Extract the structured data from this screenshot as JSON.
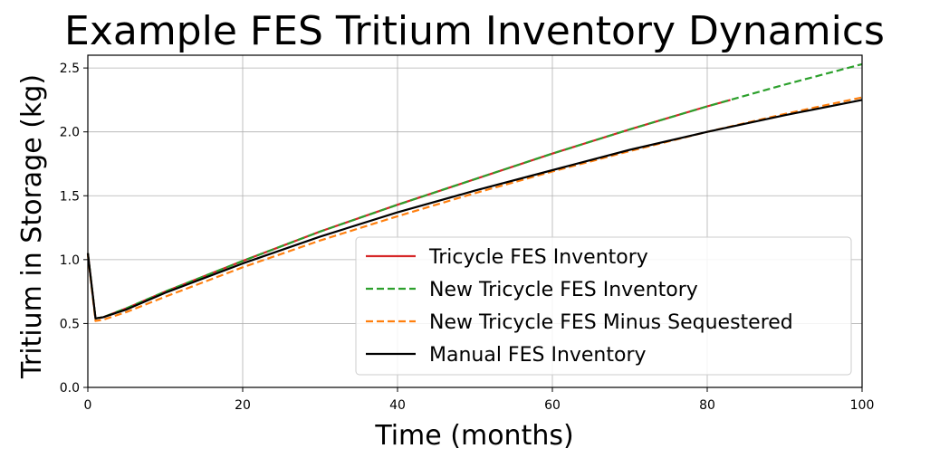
{
  "chart_data": {
    "type": "line",
    "title": "Example FES Tritium Inventory Dynamics",
    "xlabel": "Time (months)",
    "ylabel": "Tritium in Storage (kg)",
    "xlim": [
      0,
      100
    ],
    "ylim": [
      0,
      2.6
    ],
    "xticks": [
      0,
      20,
      40,
      60,
      80,
      100
    ],
    "xtick_labels": [
      "0",
      "20",
      "40",
      "60",
      "80",
      "100"
    ],
    "yticks": [
      0.0,
      0.5,
      1.0,
      1.5,
      2.0,
      2.5
    ],
    "ytick_labels": [
      "0.0",
      "0.5",
      "1.0",
      "1.5",
      "2.0",
      "2.5"
    ],
    "grid": true,
    "legend_position": "lower-right",
    "series": [
      {
        "name": "Tricycle FES Inventory",
        "color": "#d62728",
        "style": "solid",
        "x": [
          0,
          1,
          2,
          5,
          10,
          20,
          30,
          40,
          50,
          60,
          70,
          80,
          83
        ],
        "y": [
          1.05,
          0.54,
          0.55,
          0.62,
          0.75,
          0.99,
          1.22,
          1.43,
          1.63,
          1.83,
          2.02,
          2.2,
          2.25
        ]
      },
      {
        "name": "New Tricycle FES Inventory",
        "color": "#2ca02c",
        "style": "dashed",
        "x": [
          0,
          1,
          2,
          5,
          10,
          20,
          30,
          40,
          50,
          60,
          70,
          80,
          90,
          100
        ],
        "y": [
          1.05,
          0.54,
          0.55,
          0.62,
          0.75,
          0.99,
          1.22,
          1.43,
          1.63,
          1.83,
          2.02,
          2.2,
          2.37,
          2.53
        ]
      },
      {
        "name": "New Tricycle FES Minus Sequestered",
        "color": "#ff7f0e",
        "style": "dashed",
        "x": [
          0,
          1,
          2,
          5,
          10,
          20,
          30,
          40,
          50,
          60,
          70,
          80,
          90,
          100
        ],
        "y": [
          1.04,
          0.52,
          0.53,
          0.59,
          0.71,
          0.94,
          1.15,
          1.34,
          1.52,
          1.69,
          1.85,
          2.0,
          2.14,
          2.27
        ]
      },
      {
        "name": "Manual FES Inventory",
        "color": "#000000",
        "style": "solid",
        "x": [
          0,
          1,
          2,
          5,
          10,
          20,
          30,
          40,
          50,
          60,
          70,
          80,
          90,
          100
        ],
        "y": [
          1.05,
          0.54,
          0.55,
          0.61,
          0.74,
          0.97,
          1.18,
          1.37,
          1.54,
          1.7,
          1.86,
          2.0,
          2.13,
          2.25
        ]
      }
    ]
  }
}
